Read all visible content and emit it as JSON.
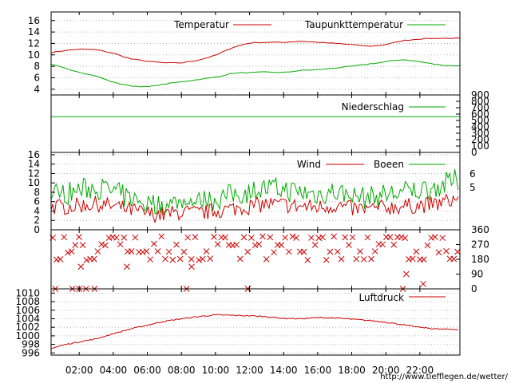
{
  "colors": {
    "temperatur": "#cc0000",
    "taupunkt": "#00aa00",
    "niederschlag": "#00aa00",
    "wind": "#cc0000",
    "boeen": "#00aa00",
    "richtung": "#cc0000",
    "luftdruck": "#cc0000"
  },
  "footer": {
    "url": "http://www.tiefflegen.de/wetter/"
  },
  "chart_data": [
    {
      "type": "line",
      "panel": "temperatur",
      "xlabels": [
        "02:00",
        "04:00",
        "06:00",
        "08:00",
        "10:00",
        "12:00",
        "14:00",
        "16:00",
        "18:00",
        "20:00",
        "22:00"
      ],
      "yticks": [
        4,
        6,
        8,
        10,
        12,
        14,
        16
      ],
      "ylim": [
        3,
        17.5
      ],
      "x_hours": [
        0,
        1,
        2,
        3,
        4,
        5,
        6,
        7,
        8,
        9,
        10,
        11,
        12,
        13,
        14,
        15,
        16,
        17,
        18,
        19,
        20,
        21,
        22,
        23,
        24
      ],
      "series": [
        {
          "name": "Temperatur",
          "color_key": "temperatur",
          "values": [
            10.2,
            10.7,
            11.0,
            10.9,
            10.3,
            9.3,
            8.9,
            8.6,
            8.6,
            9.1,
            9.9,
            11.3,
            12.1,
            12.2,
            12.2,
            12.4,
            12.2,
            12.0,
            11.8,
            11.5,
            11.8,
            12.5,
            12.8,
            12.9,
            12.9
          ]
        },
        {
          "name": "Taupunkttemperatur",
          "color_key": "taupunkt",
          "values": [
            8.6,
            7.8,
            7.0,
            6.3,
            5.2,
            4.6,
            4.4,
            4.9,
            5.3,
            5.7,
            6.1,
            6.8,
            6.9,
            7.0,
            6.9,
            7.3,
            7.4,
            7.7,
            8.0,
            8.4,
            8.8,
            9.2,
            8.8,
            8.3,
            8.1
          ]
        }
      ]
    },
    {
      "type": "line",
      "panel": "niederschlag",
      "yticks": [
        0,
        100,
        200,
        300,
        400,
        500,
        600,
        700,
        800,
        900
      ],
      "ylim": [
        0,
        900
      ],
      "series": [
        {
          "name": "Niederschlag",
          "color_key": "niederschlag",
          "constant": 560
        }
      ]
    },
    {
      "type": "line",
      "panel": "wind",
      "yticks_left": [
        0,
        2,
        4,
        6,
        8,
        10,
        12,
        14,
        16
      ],
      "yticks_right": [
        5,
        6
      ],
      "ylim": [
        0,
        16.5
      ],
      "x_hours": [
        0,
        1,
        2,
        3,
        4,
        5,
        6,
        7,
        8,
        9,
        10,
        11,
        12,
        13,
        14,
        15,
        16,
        17,
        18,
        19,
        20,
        21,
        22,
        23,
        24
      ],
      "series": [
        {
          "name": "Wind",
          "color_key": "wind",
          "values": [
            5.0,
            4.8,
            5.2,
            5.5,
            5.0,
            4.2,
            3.5,
            3.2,
            3.8,
            3.5,
            4.0,
            4.5,
            5.0,
            5.5,
            5.3,
            5.0,
            4.8,
            5.2,
            4.5,
            4.3,
            4.8,
            5.0,
            5.2,
            5.5,
            6.5
          ]
        },
        {
          "name": "Boeen",
          "color_key": "boeen",
          "values": [
            8.0,
            7.5,
            8.5,
            9.0,
            8.2,
            6.5,
            5.5,
            5.0,
            6.0,
            5.8,
            6.5,
            7.5,
            8.0,
            8.8,
            8.5,
            8.0,
            7.5,
            8.2,
            7.0,
            6.8,
            7.5,
            8.0,
            8.5,
            9.0,
            10.5
          ]
        }
      ]
    },
    {
      "type": "scatter",
      "panel": "windrichtung",
      "yticks": [
        0,
        90,
        180,
        270,
        360
      ],
      "ylim": [
        0,
        360
      ],
      "marker": "x",
      "color_key": "richtung",
      "typical_values": [
        315,
        270,
        225,
        180
      ],
      "outliers": [
        {
          "h": 0.6,
          "v": 0
        },
        {
          "h": 1.6,
          "v": 0
        },
        {
          "h": 2.0,
          "v": 0
        },
        {
          "h": 2.4,
          "v": 0
        },
        {
          "h": 2.9,
          "v": 0
        },
        {
          "h": 8.3,
          "v": 0
        },
        {
          "h": 11.9,
          "v": 0
        },
        {
          "h": 21.0,
          "v": 0
        },
        {
          "h": 2.1,
          "v": 135
        },
        {
          "h": 4.8,
          "v": 135
        },
        {
          "h": 8.6,
          "v": 135
        },
        {
          "h": 21.2,
          "v": 90
        },
        {
          "h": 22.2,
          "v": 30
        }
      ]
    },
    {
      "type": "line",
      "panel": "luftdruck",
      "yticks": [
        996,
        998,
        1000,
        1002,
        1004,
        1006,
        1008,
        1010
      ],
      "ylim": [
        995.5,
        1011
      ],
      "x_hours": [
        0,
        1,
        2,
        3,
        4,
        5,
        6,
        7,
        8,
        9,
        10,
        11,
        12,
        13,
        14,
        15,
        16,
        17,
        18,
        19,
        20,
        21,
        22,
        23,
        24
      ],
      "series": [
        {
          "name": "Luftdruck",
          "color_key": "luftdruck",
          "values": [
            996.6,
            997.8,
            998.6,
            999.3,
            1000.5,
            1001.6,
            1002.5,
            1003.4,
            1004.0,
            1004.5,
            1004.9,
            1004.8,
            1004.7,
            1004.5,
            1004.1,
            1004.0,
            1004.3,
            1004.2,
            1003.9,
            1003.6,
            1003.2,
            1002.6,
            1002.0,
            1001.6,
            1001.5
          ]
        }
      ]
    }
  ]
}
